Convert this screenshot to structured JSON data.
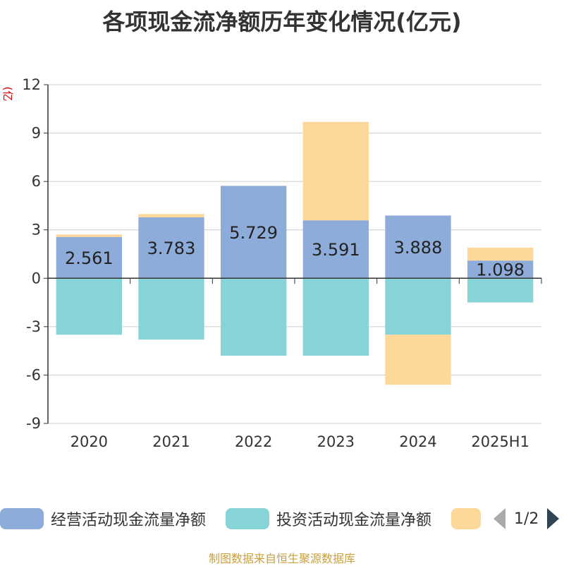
{
  "title": "各项现金流净额历年变化情况(亿元)",
  "unit_label": "(亿元)",
  "source": "制图数据来自恒生聚源数据库",
  "colors": {
    "operating": "#8eacd9",
    "investing": "#87d4d6",
    "financing": "#fdd899",
    "grid": "#cccccc",
    "axis": "#333333",
    "text": "#333333"
  },
  "legend": {
    "items": [
      {
        "label": "经营活动现金流量净额",
        "color": "#8eacd9"
      },
      {
        "label": "投资活动现金流量净额",
        "color": "#87d4d6"
      },
      {
        "label": "",
        "color": "#fdd899"
      }
    ],
    "page": "1/2"
  },
  "chart_data": {
    "type": "bar",
    "stacked": true,
    "categories": [
      "2020",
      "2021",
      "2022",
      "2023",
      "2024",
      "2025H1"
    ],
    "series": [
      {
        "name": "经营活动现金流量净额",
        "values": [
          2.561,
          3.783,
          5.729,
          3.591,
          3.888,
          1.098
        ],
        "show_labels": true
      },
      {
        "name": "投资活动现金流量净额",
        "values": [
          -3.5,
          -3.8,
          -4.8,
          -4.8,
          -3.5,
          -1.5
        ],
        "show_labels": false
      },
      {
        "name": "",
        "values": [
          0.15,
          0.2,
          0.0,
          6.1,
          -3.1,
          0.8
        ],
        "show_labels": false
      }
    ],
    "data_labels": [
      "2.561",
      "3.783",
      "5.729",
      "3.591",
      "3.888",
      "1.098"
    ],
    "y_ticks": [
      -9,
      -6,
      -3,
      0,
      3,
      6,
      9,
      12
    ],
    "y_tick_labels": [
      "-9",
      "-6",
      "-3",
      "0",
      "3",
      "6",
      "9",
      "12"
    ],
    "ylim": [
      -9,
      12
    ],
    "grid": true,
    "legend_position": "bottom"
  }
}
